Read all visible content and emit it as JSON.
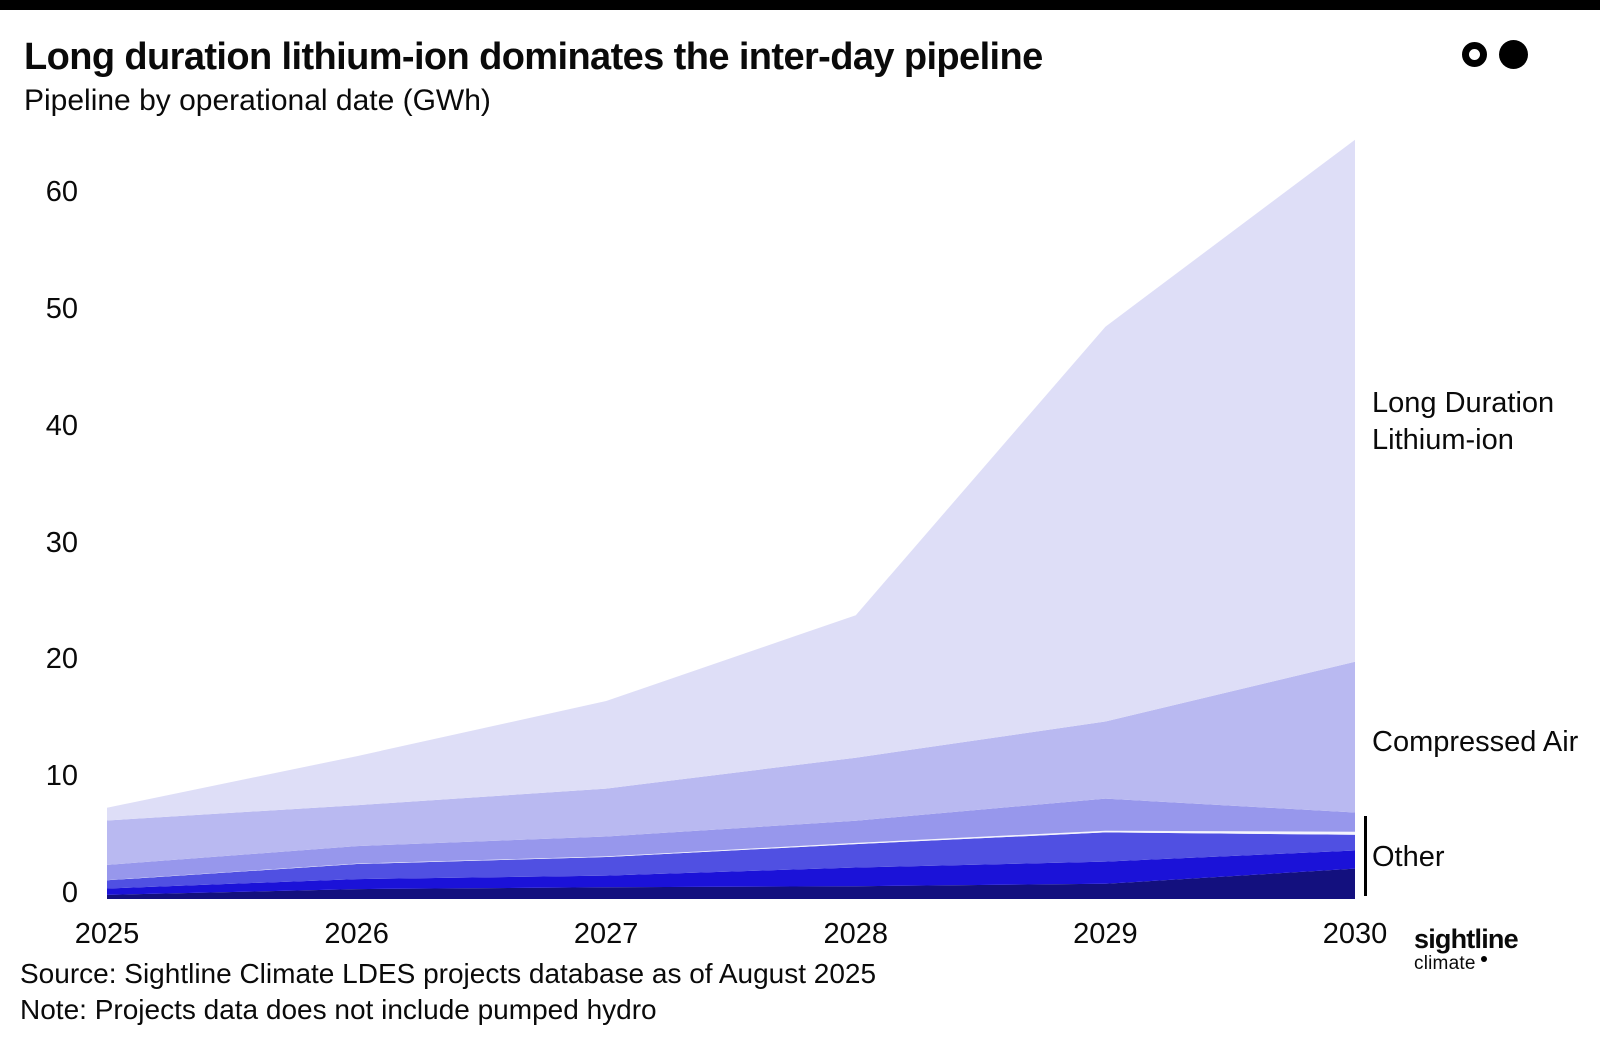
{
  "page": {
    "title": "Long duration lithium-ion dominates the inter-day pipeline",
    "subtitle": "Pipeline by operational date (GWh)",
    "source": "Source: Sightline Climate LDES projects database as of August 2025",
    "note": "Note: Projects data does not include pumped hydro",
    "logo": {
      "primary": "sightline",
      "secondary": "climate"
    },
    "header_icon": "ring-and-dot-icon",
    "colors": {
      "top_bar": "#000000",
      "text": "#0a0a0a"
    }
  },
  "chart_data": {
    "type": "area",
    "stacked": true,
    "title": "Long duration lithium-ion dominates the inter-day pipeline",
    "subtitle": "Pipeline by operational date (GWh)",
    "xlabel": "",
    "ylabel": "GWh",
    "grid": false,
    "legend_position": "right-annotations",
    "x": [
      2025,
      2026,
      2027,
      2028,
      2029,
      2030
    ],
    "yticks": [
      0,
      10,
      20,
      30,
      40,
      50,
      60
    ],
    "ylim": [
      0,
      65
    ],
    "series": [
      {
        "name": "Other - dark navy",
        "group": "Other",
        "color": "#13107E",
        "values": [
          0.35,
          0.85,
          1.0,
          1.1,
          1.3,
          2.6
        ]
      },
      {
        "name": "Other - deep blue",
        "group": "Other",
        "color": "#1B12D8",
        "values": [
          0.55,
          0.85,
          1.0,
          1.6,
          1.9,
          1.55
        ]
      },
      {
        "name": "Other - blue violet",
        "group": "Other",
        "color": "#5050E2",
        "values": [
          0.7,
          1.3,
          1.6,
          2.0,
          2.5,
          1.35
        ]
      },
      {
        "name": "Other - pale",
        "group": "Other",
        "color": "#F4F4FD",
        "values": [
          0.02,
          0.03,
          0.05,
          0.1,
          0.15,
          0.26
        ]
      },
      {
        "name": "Other - mid periwinkle",
        "group": "Other",
        "color": "#9797EC",
        "values": [
          1.3,
          1.5,
          1.7,
          1.9,
          2.75,
          1.65
        ]
      },
      {
        "name": "Compressed Air",
        "group": "Compressed Air",
        "color": "#B9B9F1",
        "values": [
          3.8,
          3.5,
          4.1,
          5.4,
          6.6,
          12.9
        ]
      },
      {
        "name": "Long Duration Lithium-ion",
        "group": "Long Duration Lithium-ion",
        "color": "#DEDEF7",
        "values": [
          1.1,
          4.2,
          7.5,
          12.2,
          33.8,
          44.7
        ]
      }
    ],
    "totals_by_year": [
      7.8,
      12.2,
      16.9,
      24.3,
      49.0,
      65.0
    ],
    "annotations": [
      {
        "text": "Long Duration\nLithium-ion"
      },
      {
        "text": "Compressed Air"
      },
      {
        "text": "Other",
        "bracket": true
      }
    ]
  }
}
